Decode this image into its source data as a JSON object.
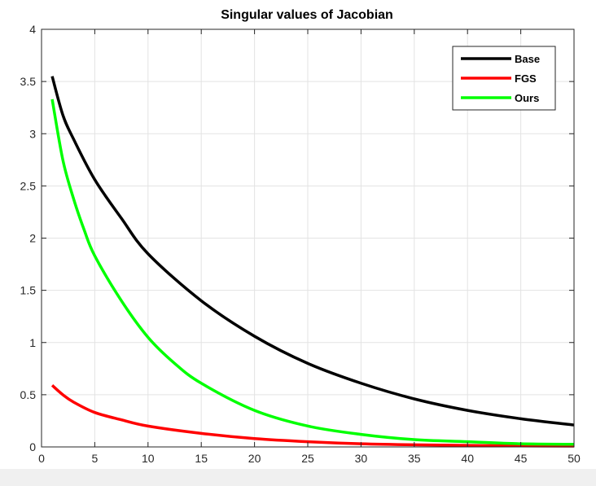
{
  "chart_data": {
    "type": "line",
    "title": "Singular values of Jacobian",
    "xlabel": "",
    "ylabel": "",
    "xlim": [
      0,
      50
    ],
    "ylim": [
      0,
      4
    ],
    "xticks": [
      0,
      5,
      10,
      15,
      20,
      25,
      30,
      35,
      40,
      45,
      50
    ],
    "yticks": [
      0,
      0.5,
      1,
      1.5,
      2,
      2.5,
      3,
      3.5,
      4
    ],
    "xtick_labels": [
      "0",
      "5",
      "10",
      "15",
      "20",
      "25",
      "30",
      "35",
      "40",
      "45",
      "50"
    ],
    "ytick_labels": [
      "0",
      "0.5",
      "1",
      "1.5",
      "2",
      "2.5",
      "3",
      "3.5",
      "4"
    ],
    "grid": true,
    "legend_position": "top-right",
    "series": [
      {
        "name": "Base",
        "color": "#000000",
        "x": [
          1,
          2,
          3,
          5,
          7.5,
          10,
          15,
          20,
          25,
          30,
          35,
          40,
          45,
          50
        ],
        "y": [
          3.55,
          3.18,
          2.95,
          2.56,
          2.19,
          1.85,
          1.4,
          1.06,
          0.8,
          0.61,
          0.46,
          0.35,
          0.27,
          0.21
        ]
      },
      {
        "name": "FGS",
        "color": "#ff0000",
        "x": [
          1,
          2,
          3,
          5,
          7.5,
          10,
          15,
          20,
          25,
          30,
          35,
          40,
          45,
          50
        ],
        "y": [
          0.59,
          0.5,
          0.43,
          0.33,
          0.26,
          0.2,
          0.13,
          0.08,
          0.05,
          0.03,
          0.02,
          0.015,
          0.01,
          0.008
        ]
      },
      {
        "name": "Ours",
        "color": "#00ff00",
        "x": [
          1,
          2,
          3,
          4,
          5,
          7.5,
          10,
          12.5,
          15,
          20,
          25,
          30,
          35,
          40,
          45,
          50
        ],
        "y": [
          3.33,
          2.75,
          2.38,
          2.08,
          1.83,
          1.4,
          1.05,
          0.8,
          0.61,
          0.35,
          0.2,
          0.12,
          0.07,
          0.05,
          0.03,
          0.025
        ]
      }
    ]
  }
}
